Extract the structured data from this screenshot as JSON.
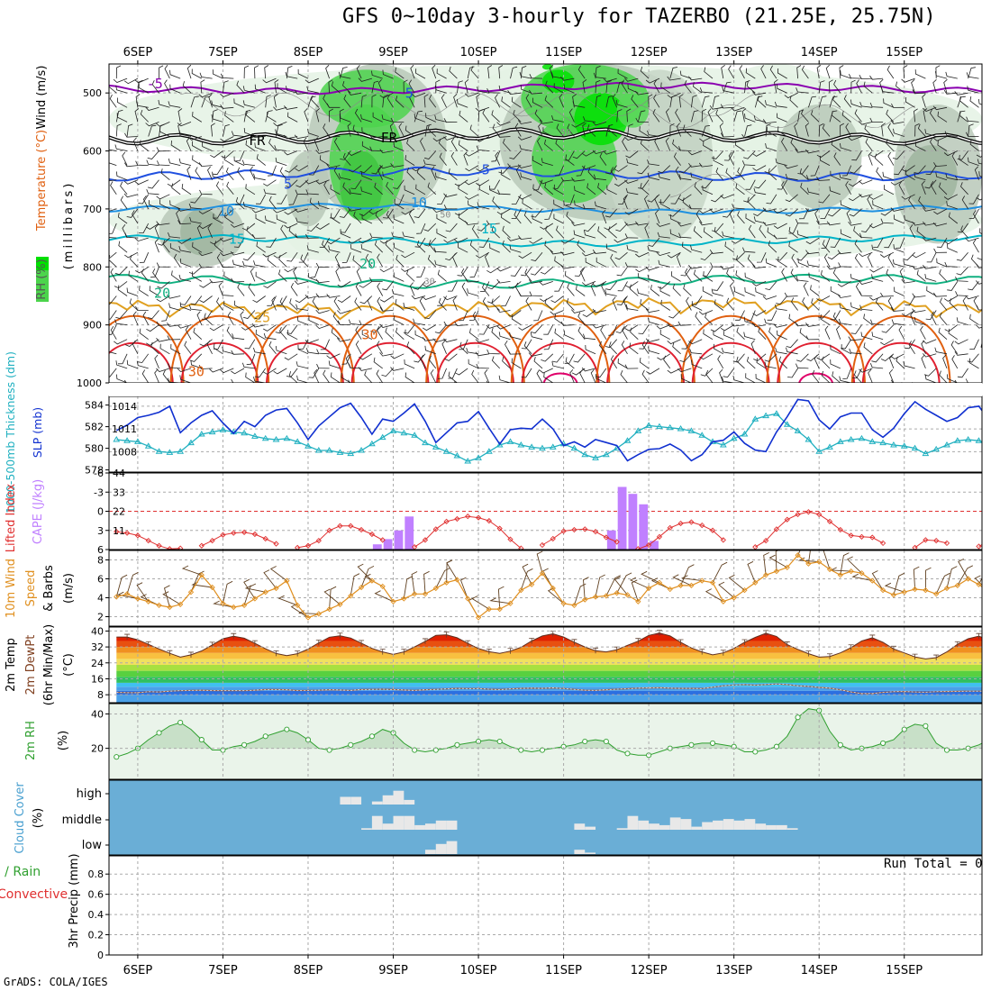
{
  "title": "GFS 0~10day 3-hourly for TAZERBO (21.25E, 25.75N)",
  "footer": "GrADS: COLA/IGES",
  "run_total_label": "Run Total = 0",
  "date_labels": [
    "6SEP",
    "7SEP",
    "8SEP",
    "9SEP",
    "10SEP",
    "11SEP",
    "12SEP",
    "13SEP",
    "14SEP",
    "15SEP"
  ],
  "colors": {
    "rh_green": "#4cd44c",
    "rh_bright": "#00e000",
    "rh_gray": "#b8c8b8",
    "rh_light": "#e4f2e4",
    "temp_minus5": "#8a00b0",
    "temp_fr": "#000000",
    "temp_5": "#2050e0",
    "temp_10": "#1e90e0",
    "temp_15": "#00b4c8",
    "temp_20": "#10b080",
    "temp_25": "#e0a020",
    "temp_30": "#e06010",
    "temp_35": "#e02030",
    "slp": "#1030d0",
    "thickness": "#20b0c0",
    "lifted_index": "#e03030",
    "cape": "#c080ff",
    "wind_speed": "#e09020",
    "wind_barb": "#604020",
    "rh2m": "#30a030",
    "cloud_bg": "#6aaed6",
    "cloud_bar": "#e8e8e8"
  },
  "chart_data": [
    {
      "type": "heatmap",
      "name": "upper_air",
      "ylabel_parts": [
        "RH (%)",
        "Temperature (°C)",
        "Wind (m/s)"
      ],
      "ylabel_units": "(millibars)",
      "yticks": [
        500,
        600,
        700,
        800,
        900,
        1000
      ],
      "ylim": [
        1000,
        450
      ],
      "contour_labels": [
        {
          "text": "-5",
          "t": 3.6,
          "p": 492
        },
        {
          "text": "5",
          "t": 27.5,
          "p": 508
        },
        {
          "text": "FR",
          "t": 13.2,
          "p": 590
        },
        {
          "text": "FR",
          "t": 25.6,
          "p": 585
        },
        {
          "text": "5",
          "t": 16.1,
          "p": 665
        },
        {
          "text": "5",
          "t": 34.7,
          "p": 640
        },
        {
          "text": "10",
          "t": 10.3,
          "p": 712
        },
        {
          "text": "10",
          "t": 28.4,
          "p": 697
        },
        {
          "text": "15",
          "t": 11.3,
          "p": 760
        },
        {
          "text": "15",
          "t": 35.0,
          "p": 742
        },
        {
          "text": "20",
          "t": 23.6,
          "p": 803
        },
        {
          "text": "20",
          "t": 4.3,
          "p": 853
        },
        {
          "text": "25",
          "t": 13.7,
          "p": 895
        },
        {
          "text": "30",
          "t": 23.8,
          "p": 925
        },
        {
          "text": "30",
          "t": 7.5,
          "p": 988
        },
        {
          "text": "50",
          "t": 42.2,
          "p": 573
        },
        {
          "text": "50",
          "t": 30.9,
          "p": 715
        },
        {
          "text": "30",
          "t": 29.4,
          "p": 830
        }
      ]
    },
    {
      "type": "line",
      "name": "slp_thickness",
      "ylabel_left": "1000-500mb Thickness (dm)",
      "ylabel_right": "SLP (mb)",
      "left_ticks": [
        578,
        580,
        582,
        584
      ],
      "left_range": [
        577.8,
        584.8
      ],
      "right_ticks": [
        1008,
        1011,
        1014
      ],
      "right_range": [
        1005.3,
        1015.3
      ],
      "series": [
        {
          "name": "SLP (mb)",
          "values": [
            1010.8,
            1011.5,
            1012.5,
            1012.8,
            1013.2,
            1014.0,
            1010.5,
            1011.8,
            1012.8,
            1013.4,
            1011.8,
            1010.4,
            1012.0,
            1011.3,
            1012.8,
            1013.5,
            1013.7,
            1011.8,
            1009.6,
            1011.4,
            1012.6,
            1013.8,
            1014.4,
            1012.5,
            1010.3,
            1012.3,
            1012.0,
            1013.1,
            1014.3,
            1012.0,
            1009.2,
            1010.5,
            1011.8,
            1012.0,
            1013.3,
            1011.1,
            1009.0,
            1010.9,
            1011.1,
            1011.0,
            1012.3,
            1011.0,
            1008.8,
            1009.3,
            1008.6,
            1009.6,
            1009.2,
            1008.8,
            1006.8,
            1007.6,
            1008.3,
            1008.4,
            1009.0,
            1008.2,
            1006.8,
            1007.6,
            1009.3,
            1009.5,
            1010.6,
            1009.1,
            1008.2,
            1008.0,
            1010.6,
            1012.6,
            1014.9,
            1014.7,
            1012.2,
            1011.0,
            1012.6,
            1013.1,
            1013.1,
            1010.9,
            1009.9,
            1011.1,
            1013.0,
            1014.6,
            1013.6,
            1012.8,
            1012.0,
            1012.5,
            1013.8,
            1014.0,
            1012.1,
            1010.5,
            1010.7,
            1012.6,
            1013.1,
            1012.7,
            1012.0,
            1011.4,
            1010.7,
            1011.6,
            1013.6
          ]
        },
        {
          "name": "1000-500mb Thickness (dm)",
          "values": [
            580.8,
            580.7,
            580.6,
            580.2,
            579.7,
            579.6,
            579.7,
            580.5,
            581.3,
            581.5,
            581.7,
            581.5,
            581.4,
            581.1,
            580.9,
            580.8,
            580.9,
            580.6,
            580.2,
            579.8,
            579.8,
            579.6,
            579.5,
            579.8,
            580.4,
            581.0,
            581.6,
            581.4,
            581.2,
            580.5,
            580.1,
            579.7,
            579.3,
            578.8,
            579.1,
            579.7,
            580.3,
            580.6,
            580.3,
            580.1,
            580.0,
            580.1,
            580.4,
            580.0,
            579.4,
            579.1,
            579.4,
            580.0,
            580.7,
            581.6,
            582.1,
            582.0,
            581.9,
            581.8,
            581.6,
            581.2,
            580.6,
            580.3,
            580.9,
            581.3,
            582.7,
            583.0,
            583.2,
            582.2,
            581.6,
            580.8,
            579.7,
            580.1,
            580.6,
            580.8,
            580.9,
            580.6,
            580.5,
            580.3,
            580.2,
            580.0,
            579.5,
            579.9,
            580.3,
            580.7,
            580.8,
            580.7,
            580.4,
            580.1,
            579.9,
            579.8,
            580.2,
            580.6,
            581.1,
            581.2,
            580.7,
            579.9,
            579.2
          ]
        }
      ]
    },
    {
      "type": "bar",
      "name": "cape_lifted_index",
      "ylabel_left": "Lifted Index",
      "ylabel_right": "CAPE (J/kg)",
      "left_ticks": [
        "-6",
        "-3",
        "0",
        "3",
        "6"
      ],
      "right_ticks": [
        11,
        22,
        33,
        44
      ],
      "right_range": [
        0,
        44
      ],
      "cape_values": [
        {
          "t": 24.5,
          "v": 3
        },
        {
          "t": 25.5,
          "v": 6
        },
        {
          "t": 26.5,
          "v": 11
        },
        {
          "t": 27.5,
          "v": 19
        },
        {
          "t": 46.5,
          "v": 11
        },
        {
          "t": 47.5,
          "v": 36
        },
        {
          "t": 48.5,
          "v": 32
        },
        {
          "t": 49.5,
          "v": 26
        },
        {
          "t": 50.5,
          "v": 5
        }
      ],
      "lifted_index_values": [
        3.2,
        3.4,
        3.8,
        4.6,
        5.4,
        5.9,
        5.8,
        6.0,
        5.4,
        4.6,
        3.7,
        3.4,
        3.3,
        3.6,
        4.3,
        5.1,
        6.0,
        5.7,
        5.4,
        4.6,
        3.0,
        2.3,
        2.3,
        2.9,
        3.6,
        4.5,
        6.0,
        6.0,
        5.6,
        4.5,
        2.8,
        1.6,
        1.2,
        0.8,
        1.0,
        1.5,
        2.7,
        4.4,
        5.8,
        6.0,
        5.3,
        4.3,
        3.1,
        2.9,
        2.8,
        3.2,
        4.1,
        4.8,
        6.0,
        5.9,
        5.3,
        4.0,
        2.6,
        1.9,
        1.7,
        2.2,
        3.0,
        4.5,
        6.0,
        6.0,
        5.6,
        4.6,
        2.8,
        1.3,
        0.5,
        0.1,
        0.5,
        1.6,
        2.9,
        3.8,
        4.0,
        4.1,
        5.0,
        6.0,
        6.0,
        5.7,
        4.5,
        4.6,
        5.0,
        6.0,
        6.0,
        5.5,
        4.6,
        3.4,
        2.6,
        2.5,
        2.7,
        3.6,
        4.8,
        5.9,
        6.0,
        5.3,
        4.3
      ]
    },
    {
      "type": "line",
      "name": "wind10m",
      "ylabel_parts": [
        "10m Wind",
        "Speed",
        "& Barbs"
      ],
      "ylabel_units": "(m/s)",
      "yticks": [
        2,
        4,
        6,
        8
      ],
      "ylim": [
        1,
        9
      ],
      "series": [
        {
          "name": "Speed",
          "values": [
            4.1,
            4.4,
            3.9,
            3.6,
            3.2,
            3.0,
            3.3,
            4.6,
            6.4,
            5.1,
            3.4,
            3.0,
            3.2,
            3.9,
            4.6,
            5.0,
            5.8,
            3.2,
            1.9,
            2.3,
            2.8,
            3.3,
            4.2,
            5.1,
            5.8,
            5.2,
            3.6,
            3.9,
            4.4,
            4.4,
            5.0,
            5.6,
            5.9,
            3.9,
            1.9,
            2.8,
            2.8,
            3.4,
            4.8,
            5.4,
            6.6,
            5.0,
            3.4,
            3.2,
            3.8,
            4.1,
            4.2,
            4.5,
            4.3,
            3.6,
            5.0,
            5.6,
            4.9,
            5.3,
            5.3,
            5.8,
            5.6,
            3.6,
            4.0,
            4.8,
            5.6,
            6.4,
            6.8,
            7.2,
            8.5,
            7.6,
            7.8,
            7.0,
            6.4,
            6.8,
            6.6,
            5.8,
            4.8,
            4.3,
            4.6,
            4.9,
            4.8,
            4.4,
            5.0,
            5.3,
            6.0,
            5.4,
            4.6,
            4.6,
            4.9,
            4.1,
            3.0,
            1.5,
            4.0,
            4.2,
            4.4,
            4.9,
            6.4
          ]
        }
      ]
    },
    {
      "type": "area",
      "name": "temp2m",
      "ylabel_parts": [
        "2m Temp",
        "2m DewPt",
        "(6hr Min/Max)"
      ],
      "ylabel_units": "(°C)",
      "yticks": [
        8,
        16,
        24,
        32,
        40
      ],
      "ylim": [
        4,
        42
      ],
      "series": [
        {
          "name": "2m Temp",
          "values": [
            37.0,
            37.0,
            35.6,
            33.3,
            31.0,
            28.8,
            26.9,
            28.0,
            30.0,
            33.0,
            36.1,
            37.4,
            36.4,
            33.8,
            31.1,
            28.7,
            27.6,
            28.6,
            30.9,
            34.1,
            36.9,
            37.6,
            36.5,
            33.9,
            31.3,
            29.5,
            28.3,
            29.5,
            32.0,
            34.8,
            37.8,
            38.1,
            36.6,
            33.8,
            31.2,
            29.6,
            28.8,
            29.9,
            31.8,
            35.0,
            37.5,
            38.6,
            37.0,
            34.4,
            32.0,
            30.1,
            29.5,
            30.6,
            32.8,
            34.9,
            37.8,
            39.0,
            37.5,
            34.3,
            31.5,
            29.5,
            28.0,
            29.0,
            31.3,
            34.3,
            36.8,
            38.9,
            37.3,
            33.2,
            30.8,
            28.6,
            26.9,
            27.2,
            29.0,
            31.7,
            35.0,
            36.6,
            34.3,
            31.0,
            29.0,
            27.0,
            26.0,
            26.6,
            29.5,
            33.3,
            36.1,
            37.4,
            35.5,
            33.7,
            31.6,
            29.2,
            27.6,
            28.6,
            31.7,
            34.5,
            37.1,
            38.2,
            36.9
          ]
        },
        {
          "name": "2m DewPt",
          "values": [
            9.2,
            9.0,
            9.0,
            9.5,
            9.4,
            9.8,
            10.0,
            10.2,
            10.3,
            10.1,
            10.0,
            10.0,
            10.0,
            10.3,
            10.6,
            10.6,
            10.5,
            10.1,
            10.2,
            10.3,
            10.5,
            10.4,
            10.2,
            10.6,
            10.7,
            10.8,
            10.6,
            10.4,
            10.2,
            10.5,
            10.7,
            10.9,
            11.2,
            11.1,
            11.1,
            10.8,
            10.6,
            10.9,
            11.2,
            11.3,
            11.2,
            11.4,
            11.1,
            10.7,
            10.3,
            10.2,
            10.5,
            10.8,
            11.0,
            11.3,
            11.4,
            11.5,
            11.3,
            11.2,
            11.2,
            11.1,
            11.8,
            12.5,
            12.9,
            13.1,
            12.8,
            13.1,
            13.4,
            13.1,
            12.5,
            12.2,
            11.7,
            11.3,
            10.5,
            9.4,
            8.6,
            8.6,
            9.2,
            9.5,
            9.6,
            9.4,
            9.3,
            9.5,
            9.6,
            9.7,
            9.8,
            9.8,
            9.9,
            10.1,
            10.0,
            10.1,
            10.2,
            10.4,
            10.7,
            10.9,
            11.0,
            11.0,
            11.4
          ]
        }
      ]
    },
    {
      "type": "area",
      "name": "rh2m",
      "ylabel": "2m RH",
      "ylabel_units": "(%)",
      "yticks": [
        20,
        40
      ],
      "ylim": [
        2,
        46
      ],
      "series": [
        {
          "name": "2m RH",
          "values": [
            15,
            17,
            20,
            25,
            29,
            33,
            35,
            31,
            25,
            19,
            19,
            21,
            22,
            24,
            27,
            29,
            31,
            29,
            25,
            20,
            19,
            20,
            22,
            24,
            27,
            31,
            29,
            23,
            19,
            18,
            19,
            20,
            22,
            23,
            24,
            25,
            24,
            21,
            19,
            18,
            19,
            20,
            21,
            22,
            24,
            25,
            24,
            19,
            17,
            16,
            16,
            18,
            20,
            21,
            22,
            23,
            23,
            22,
            21,
            18,
            18,
            19,
            21,
            27,
            38,
            43,
            42,
            30,
            22,
            19,
            20,
            21,
            23,
            25,
            31,
            34,
            33,
            23,
            19,
            19,
            20,
            22,
            25,
            28,
            30,
            29,
            22,
            19,
            20,
            22,
            27,
            31,
            38
          ]
        }
      ]
    },
    {
      "type": "bar",
      "name": "cloud_cover",
      "ylabel_parts": [
        "Cloud Cover",
        "(%)"
      ],
      "levels": [
        "high",
        "middle",
        "low"
      ],
      "high": [
        {
          "t": 21.5,
          "v": 0.5
        },
        {
          "t": 22.5,
          "v": 0.5
        },
        {
          "t": 24.5,
          "v": 0.2
        },
        {
          "t": 25.5,
          "v": 0.6
        },
        {
          "t": 26.5,
          "v": 0.9
        },
        {
          "t": 27.5,
          "v": 0.3
        }
      ],
      "middle": [
        {
          "t": 23.5,
          "v": 0.1
        },
        {
          "t": 24.5,
          "v": 0.9
        },
        {
          "t": 25.5,
          "v": 0.4
        },
        {
          "t": 26.5,
          "v": 0.9
        },
        {
          "t": 27.5,
          "v": 0.9
        },
        {
          "t": 28.5,
          "v": 0.3
        },
        {
          "t": 29.5,
          "v": 0.4
        },
        {
          "t": 30.5,
          "v": 0.6
        },
        {
          "t": 31.5,
          "v": 0.6
        },
        {
          "t": 43.5,
          "v": 0.4
        },
        {
          "t": 44.5,
          "v": 0.2
        },
        {
          "t": 47.5,
          "v": 0.1
        },
        {
          "t": 48.5,
          "v": 0.9
        },
        {
          "t": 49.5,
          "v": 0.6
        },
        {
          "t": 50.5,
          "v": 0.4
        },
        {
          "t": 51.5,
          "v": 0.3
        },
        {
          "t": 52.5,
          "v": 0.8
        },
        {
          "t": 53.5,
          "v": 0.7
        },
        {
          "t": 54.5,
          "v": 0.2
        },
        {
          "t": 55.5,
          "v": 0.5
        },
        {
          "t": 56.5,
          "v": 0.6
        },
        {
          "t": 57.5,
          "v": 0.7
        },
        {
          "t": 58.5,
          "v": 0.6
        },
        {
          "t": 59.5,
          "v": 0.7
        },
        {
          "t": 60.5,
          "v": 0.4
        },
        {
          "t": 61.5,
          "v": 0.3
        },
        {
          "t": 62.5,
          "v": 0.3
        },
        {
          "t": 63.5,
          "v": 0.1
        }
      ],
      "low": [
        {
          "t": 29.5,
          "v": 0.3
        },
        {
          "t": 30.5,
          "v": 0.7
        },
        {
          "t": 31.5,
          "v": 0.9
        },
        {
          "t": 43.5,
          "v": 0.3
        },
        {
          "t": 44.5,
          "v": 0.1
        }
      ]
    },
    {
      "type": "bar",
      "name": "precip",
      "ylabel_parts": [
        "Total / Rain",
        "Convective"
      ],
      "ylabel_axis": "3hr Precip (mm)",
      "yticks": [
        0,
        0.2,
        0.4,
        0.6,
        0.8
      ],
      "ylim": [
        0,
        0.98
      ],
      "values": []
    }
  ]
}
